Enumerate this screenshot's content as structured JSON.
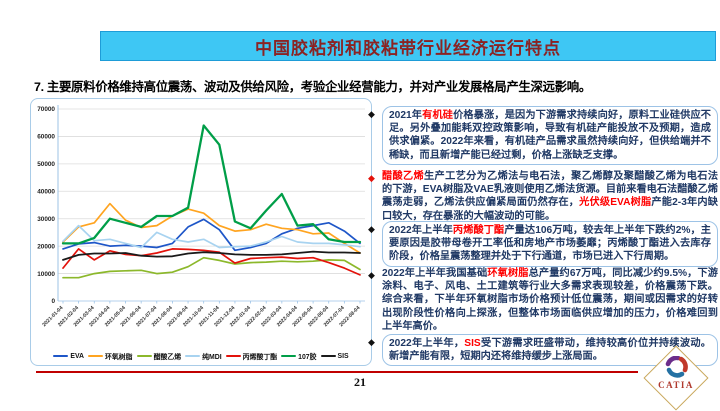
{
  "title_bar": {
    "text": "中国胶粘剂和胶粘带行业经济运行特点"
  },
  "heading": {
    "text": "7. 主要原料价格维持高位震荡、波动及供给风险，考验企业经营能力，并对产业发展格局产生深远影响。"
  },
  "colors": {
    "title_bg": "#3EC7F4",
    "title_text": "#8B2323",
    "box_border": "#9DC3E6",
    "body_text": "#1F3864",
    "highlight": "#FF0000",
    "footer_line": "#C00000"
  },
  "bullets": [
    {
      "boxed": true,
      "diamond_color": "#111111",
      "segments": [
        {
          "t": "2021年"
        },
        {
          "t": "有机硅",
          "red": true
        },
        {
          "t": "价格暴涨，是因为下游需求持续向好，原料工业硅供应不足。另外叠加能耗双控政策影响，导致有机硅产能投放不及预期，造成供求偏紧。2022年来看，有机硅产品需求虽然持续向好，但供给端并不稀缺，而且新增产能已经过剩，价格上涨缺乏支撑。"
        }
      ]
    },
    {
      "boxed": false,
      "diamond_color": "#E3120B",
      "segments": [
        {
          "t": "醋酸乙烯",
          "red": true
        },
        {
          "t": "生产工艺分为乙烯法与电石法，聚乙烯醇及聚醋酸乙烯为电石法的下游，EVA树脂及VAE乳液则使用乙烯法货源。目前来看电石法醋酸乙烯震荡走弱，乙烯法供应偏紧局面仍然存在，"
        },
        {
          "t": "光伏级EVA树脂",
          "red": true
        },
        {
          "t": "产能2-3年内缺口较大，存在暴涨的大幅波动的可能。"
        }
      ]
    },
    {
      "boxed": true,
      "diamond_color": "#111111",
      "segments": [
        {
          "t": "2022年上半年"
        },
        {
          "t": "丙烯酸丁酯",
          "red": true
        },
        {
          "t": "产量达106万吨，较去年上半年下跌约2%，主要原因是胶带母卷开工率低和房地产市场萎靡；丙烯酸丁酯进入去库存阶段，价格呈震荡整理并处于下行通道，市场已进入下行周期。"
        }
      ]
    },
    {
      "boxed": false,
      "diamond_color": "#111111",
      "segments": [
        {
          "t": "2022年上半年我国基础"
        },
        {
          "t": "环氧树脂",
          "red": true
        },
        {
          "t": "总产量约67万吨，同比减少约9.5%，下游涂料、电子、风电、土工建筑等行业大多需求表现较差，价格震荡下跌。综合来看，下半年环氧树脂市场价格预计低位震荡，期间或因需求的好转出现阶段性价格向上探涨，但整体市场面临供应增加的压力，价格难回到上半年高价。"
        }
      ]
    },
    {
      "boxed": true,
      "diamond_color": "#111111",
      "segments": [
        {
          "t": "2022年上半年，"
        },
        {
          "t": "SIS",
          "red": true
        },
        {
          "t": "受下游需求旺盛带动，维持较高价位并持续波动。新增产能有限，短期内还将维持缓步上涨局面。"
        }
      ]
    }
  ],
  "bullet_tops": [
    106,
    170,
    221,
    267,
    334
  ],
  "chart_data": {
    "type": "line",
    "title": "",
    "xlabel": "",
    "ylabel": "",
    "ylim": [
      0,
      70000
    ],
    "ytick_step": 10000,
    "grid": true,
    "legend_position": "bottom",
    "x": [
      "2021-01-04",
      "2021-02-04",
      "2021-03-04",
      "2021-04-04",
      "2021-05-04",
      "2021-06-04",
      "2021-07-04",
      "2021-08-04",
      "2021-09-04",
      "2021-10-04",
      "2021-11-04",
      "2021-12-04",
      "2022-01-04",
      "2022-02-04",
      "2022-03-04",
      "2022-04-04",
      "2022-05-04",
      "2022-06-04",
      "2022-07-04",
      "2022-08-04"
    ],
    "series": [
      {
        "name": "EVA",
        "color": "#1E56C8",
        "width": 1.7,
        "values": [
          19000,
          20800,
          21300,
          20000,
          20300,
          20000,
          19500,
          21000,
          27000,
          29800,
          26000,
          18500,
          19500,
          21000,
          24500,
          26500,
          27500,
          28500,
          25500,
          21000
        ]
      },
      {
        "name": "环氧树脂",
        "color": "#FFA420",
        "width": 1.7,
        "values": [
          21500,
          27000,
          28500,
          35500,
          29500,
          26800,
          27500,
          31000,
          33500,
          32000,
          27500,
          25500,
          26000,
          28000,
          26500,
          26000,
          24500,
          24800,
          21000,
          17500
        ]
      },
      {
        "name": "醋酸乙烯",
        "color": "#8CB82B",
        "width": 1.7,
        "values": [
          8500,
          8500,
          10000,
          10800,
          11000,
          11200,
          10000,
          10500,
          12500,
          15800,
          14800,
          13500,
          14000,
          14200,
          14500,
          14300,
          14500,
          15000,
          14800,
          11500
        ]
      },
      {
        "name": "纯MDI",
        "color": "#A8D3F0",
        "width": 1.7,
        "values": [
          21800,
          27500,
          22000,
          22500,
          21000,
          19500,
          25000,
          22500,
          21500,
          22500,
          19500,
          19800,
          20000,
          21500,
          23500,
          21500,
          21000,
          21000,
          20500,
          19800
        ]
      },
      {
        "name": "丙烯酸丁酯",
        "color": "#E3120B",
        "width": 1.7,
        "values": [
          12000,
          19000,
          15000,
          18300,
          17000,
          16500,
          17500,
          19000,
          18800,
          18500,
          17800,
          13800,
          15500,
          15800,
          16000,
          15500,
          15800,
          14000,
          12000,
          9500
        ]
      },
      {
        "name": "107胶",
        "color": "#009E48",
        "width": 2.3,
        "values": [
          21000,
          21000,
          23000,
          30000,
          28500,
          27000,
          31000,
          31000,
          34000,
          64000,
          57000,
          29000,
          26500,
          33000,
          39000,
          27500,
          28000,
          22500,
          21500,
          21500
        ]
      },
      {
        "name": "SIS",
        "color": "#1A1A1A",
        "width": 1.8,
        "values": [
          15000,
          16800,
          17300,
          17300,
          17500,
          16500,
          16200,
          16300,
          17300,
          17800,
          17500,
          17000,
          16800,
          16800,
          17000,
          17500,
          18000,
          17700,
          17700,
          17500
        ]
      }
    ]
  },
  "footer": {
    "page_number": "21"
  },
  "logo": {
    "text": "CATIA"
  }
}
